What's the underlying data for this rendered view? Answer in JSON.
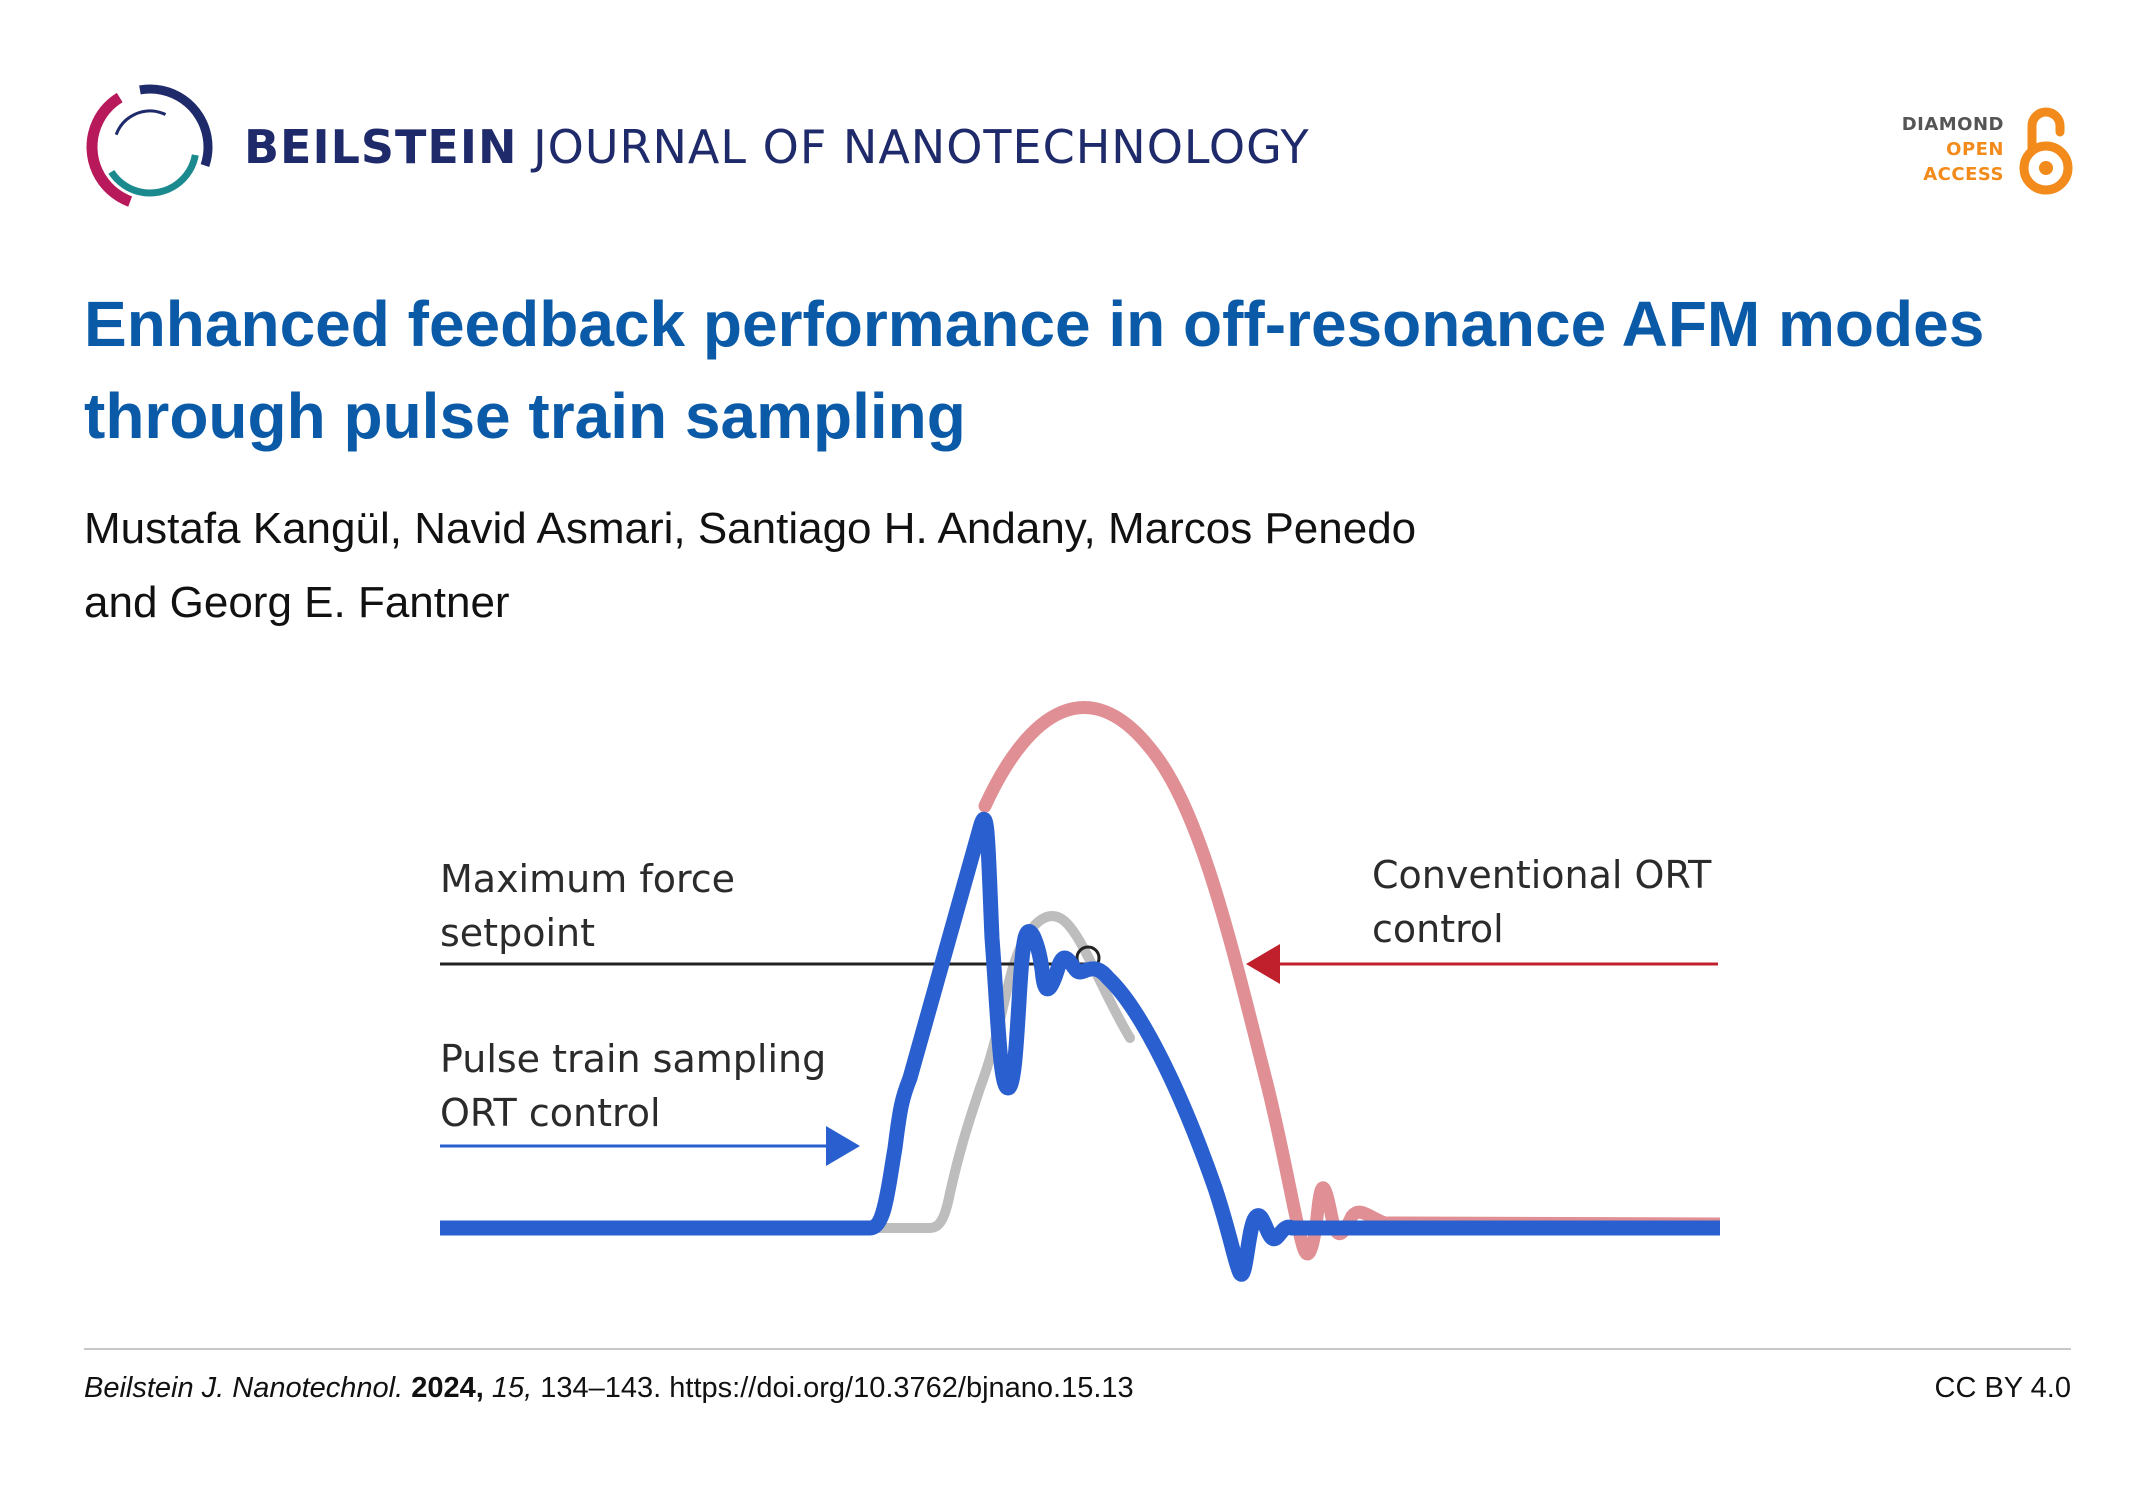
{
  "header": {
    "journal_bold": "BEILSTEIN",
    "journal_light": "JOURNAL OF NANOTECHNOLOGY",
    "badge": {
      "line1": "DIAMOND",
      "line2": "OPEN",
      "line3": "ACCESS"
    }
  },
  "article": {
    "title": "Enhanced feedback performance in off-resonance AFM modes through pulse train sampling",
    "authors_line1": "Mustafa Kangül, Navid Asmari, Santiago H. Andany, Marcos Penedo",
    "authors_line2": "and Georg E. Fantner"
  },
  "figure": {
    "label_setpoint_1": "Maximum force",
    "label_setpoint_2": "setpoint",
    "label_pulse_1": "Pulse train sampling",
    "label_pulse_2": "ORT control",
    "label_conventional_1": "Conventional ORT",
    "label_conventional_2": "control",
    "colors": {
      "conventional": "#e08f94",
      "pulse_train": "#2a5fd0",
      "gray_trace": "#bdbdbd",
      "arrow_red": "#c0202c",
      "arrow_blue": "#2a5fd0"
    }
  },
  "footer": {
    "journal_abbrev": "Beilstein J. Nanotechnol.",
    "year": "2024,",
    "volume": "15,",
    "pages_doi": "134–143. https://doi.org/10.3762/bjnano.15.13",
    "license": "CC BY 4.0"
  }
}
